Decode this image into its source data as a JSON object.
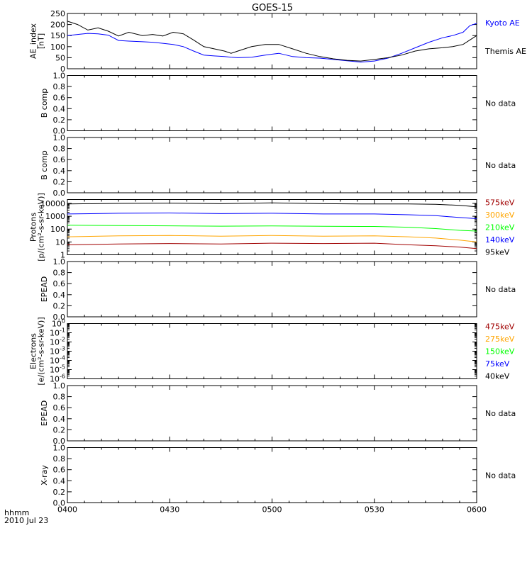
{
  "title": "GOES-15",
  "xaxis": {
    "ticks": [
      "0400",
      "0430",
      "0500",
      "0530",
      "0600"
    ],
    "tick_minutes": [
      0,
      30,
      60,
      90,
      120
    ],
    "row_label": "hhmm",
    "date_label": "2010 Jul 23"
  },
  "colors": {
    "kyoto": "#0000ff",
    "themis": "#000000",
    "dark_red": "#a00000",
    "orange": "#ffa500",
    "green": "#00ff00",
    "blue": "#0000ff",
    "black": "#000000"
  },
  "chart_data": [
    {
      "type": "line",
      "ylabel": [
        "AE_index",
        "[nT]"
      ],
      "ylim": [
        0,
        250
      ],
      "yticks": [
        0,
        50,
        100,
        150,
        200,
        250
      ],
      "x_unit": "minutes after 0400",
      "series": [
        {
          "name": "Kyoto AE",
          "color": "#0000ff",
          "x": [
            0,
            3,
            6,
            9,
            12,
            15,
            18,
            22,
            25,
            28,
            31,
            34,
            37,
            40,
            43,
            46,
            48,
            50,
            54,
            58,
            62,
            66,
            70,
            74,
            78,
            82,
            86,
            90,
            94,
            98,
            102,
            106,
            110,
            113,
            116,
            118,
            120
          ],
          "y": [
            150,
            155,
            160,
            158,
            152,
            128,
            125,
            122,
            120,
            115,
            110,
            100,
            80,
            62,
            58,
            55,
            52,
            50,
            52,
            62,
            70,
            55,
            50,
            48,
            42,
            36,
            30,
            35,
            48,
            70,
            95,
            120,
            140,
            150,
            165,
            195,
            205
          ]
        },
        {
          "name": "Themis AE",
          "color": "#000000",
          "x": [
            0,
            3,
            6,
            9,
            12,
            15,
            18,
            22,
            25,
            28,
            31,
            34,
            37,
            40,
            43,
            46,
            48,
            50,
            54,
            58,
            62,
            66,
            70,
            74,
            78,
            82,
            86,
            90,
            94,
            98,
            102,
            106,
            110,
            113,
            116,
            118,
            120
          ],
          "y": [
            215,
            200,
            175,
            185,
            170,
            148,
            165,
            150,
            155,
            148,
            165,
            158,
            130,
            100,
            90,
            80,
            70,
            80,
            100,
            110,
            110,
            90,
            70,
            55,
            45,
            38,
            35,
            42,
            50,
            62,
            80,
            90,
            95,
            100,
            110,
            130,
            150
          ]
        }
      ],
      "right_labels": [
        {
          "text": "Kyoto AE",
          "color": "#0000ff"
        },
        {
          "text": "Themis AE",
          "color": "#000000"
        }
      ]
    },
    {
      "type": "line",
      "ylabel": [
        "B comp"
      ],
      "ylim": [
        0,
        1
      ],
      "yticks": [
        0.0,
        0.2,
        0.4,
        0.6,
        0.8,
        1.0
      ],
      "ytick_labels": [
        "0.0",
        "0.2",
        "0.4",
        "0.6",
        "0.8",
        "1.0"
      ],
      "series": [],
      "right_labels": [
        {
          "text": "No data",
          "color": "#000000"
        }
      ]
    },
    {
      "type": "line",
      "ylabel": [
        "B comp"
      ],
      "ylim": [
        0,
        1
      ],
      "yticks": [
        0.0,
        0.2,
        0.4,
        0.6,
        0.8,
        1.0
      ],
      "ytick_labels": [
        "0.0",
        "0.2",
        "0.4",
        "0.6",
        "0.8",
        "1.0"
      ],
      "series": [],
      "right_labels": [
        {
          "text": "No data",
          "color": "#000000"
        }
      ]
    },
    {
      "type": "line",
      "scale": "log",
      "ylabel": [
        "Protons",
        "[p/(cm²-s-sr-keV)]"
      ],
      "ylim": [
        1,
        20000
      ],
      "yticks": [
        1,
        10,
        100,
        1000,
        10000
      ],
      "ytick_labels": [
        "1",
        "10",
        "100",
        "1000",
        "10000"
      ],
      "x_unit": "minutes after 0400",
      "series": [
        {
          "name": "575keV",
          "color": "#a00000",
          "x": [
            0,
            15,
            30,
            45,
            60,
            75,
            90,
            100,
            108,
            115,
            120
          ],
          "y": [
            6,
            7,
            7.5,
            7,
            8,
            7.5,
            8,
            6,
            5,
            4,
            3
          ]
        },
        {
          "name": "300keV",
          "color": "#ffa500",
          "x": [
            0,
            15,
            30,
            45,
            60,
            75,
            90,
            100,
            108,
            115,
            120
          ],
          "y": [
            25,
            30,
            32,
            28,
            32,
            28,
            30,
            25,
            20,
            14,
            10
          ]
        },
        {
          "name": "210keV",
          "color": "#00ff00",
          "x": [
            0,
            15,
            30,
            45,
            60,
            75,
            90,
            100,
            108,
            115,
            120
          ],
          "y": [
            200,
            190,
            180,
            170,
            175,
            165,
            160,
            140,
            110,
            80,
            70
          ]
        },
        {
          "name": "140keV",
          "color": "#0000ff",
          "x": [
            0,
            15,
            30,
            45,
            60,
            75,
            90,
            100,
            108,
            115,
            120
          ],
          "y": [
            1500,
            1700,
            1800,
            1600,
            1700,
            1500,
            1500,
            1300,
            1100,
            800,
            650
          ]
        },
        {
          "name": "95keV",
          "color": "#000000",
          "x": [
            0,
            15,
            30,
            45,
            60,
            75,
            90,
            100,
            108,
            115,
            120
          ],
          "y": [
            9000,
            10000,
            10500,
            9500,
            11000,
            9500,
            9000,
            9000,
            8500,
            7000,
            5500
          ]
        }
      ],
      "right_labels": [
        {
          "text": "575keV",
          "color": "#a00000"
        },
        {
          "text": "300keV",
          "color": "#ffa500"
        },
        {
          "text": "210keV",
          "color": "#00ff00"
        },
        {
          "text": "140keV",
          "color": "#0000ff"
        },
        {
          "text": "95keV",
          "color": "#000000"
        }
      ]
    },
    {
      "type": "line",
      "ylabel": [
        "EPEAD"
      ],
      "ylim": [
        0,
        1
      ],
      "yticks": [
        0.0,
        0.2,
        0.4,
        0.6,
        0.8,
        1.0
      ],
      "ytick_labels": [
        "0.0",
        "0.2",
        "0.4",
        "0.6",
        "0.8",
        "1.0"
      ],
      "series": [],
      "right_labels": [
        {
          "text": "No data",
          "color": "#000000"
        }
      ]
    },
    {
      "type": "line",
      "scale": "log",
      "ylabel": [
        "Electrons",
        "[e/(cm²-s-sr-keV)]"
      ],
      "ylim": [
        1e-06,
        1
      ],
      "yticks": [
        1e-06,
        1e-05,
        0.0001,
        0.001,
        0.01,
        0.1,
        1
      ],
      "ytick_labels": [
        [
          "10",
          "-6"
        ],
        [
          "10",
          "-5"
        ],
        [
          "10",
          "-4"
        ],
        [
          "10",
          "-3"
        ],
        [
          "10",
          "-2"
        ],
        [
          "10",
          "-1"
        ],
        [
          "10",
          "0"
        ]
      ],
      "series": [],
      "right_labels": [
        {
          "text": "475keV",
          "color": "#a00000"
        },
        {
          "text": "275keV",
          "color": "#ffa500"
        },
        {
          "text": "150keV",
          "color": "#00ff00"
        },
        {
          "text": "75keV",
          "color": "#0000ff"
        },
        {
          "text": "40keV",
          "color": "#000000"
        }
      ]
    },
    {
      "type": "line",
      "ylabel": [
        "EPEAD"
      ],
      "ylim": [
        0,
        1
      ],
      "yticks": [
        0.0,
        0.2,
        0.4,
        0.6,
        0.8,
        1.0
      ],
      "ytick_labels": [
        "0.0",
        "0.2",
        "0.4",
        "0.6",
        "0.8",
        "1.0"
      ],
      "series": [],
      "right_labels": [
        {
          "text": "No data",
          "color": "#000000"
        }
      ]
    },
    {
      "type": "line",
      "ylabel": [
        "X-ray"
      ],
      "ylim": [
        0,
        1
      ],
      "yticks": [
        0.0,
        0.2,
        0.4,
        0.6,
        0.8,
        1.0
      ],
      "ytick_labels": [
        "0.0",
        "0.2",
        "0.4",
        "0.6",
        "0.8",
        "1.0"
      ],
      "series": [],
      "right_labels": [
        {
          "text": "No data",
          "color": "#000000"
        }
      ]
    }
  ]
}
